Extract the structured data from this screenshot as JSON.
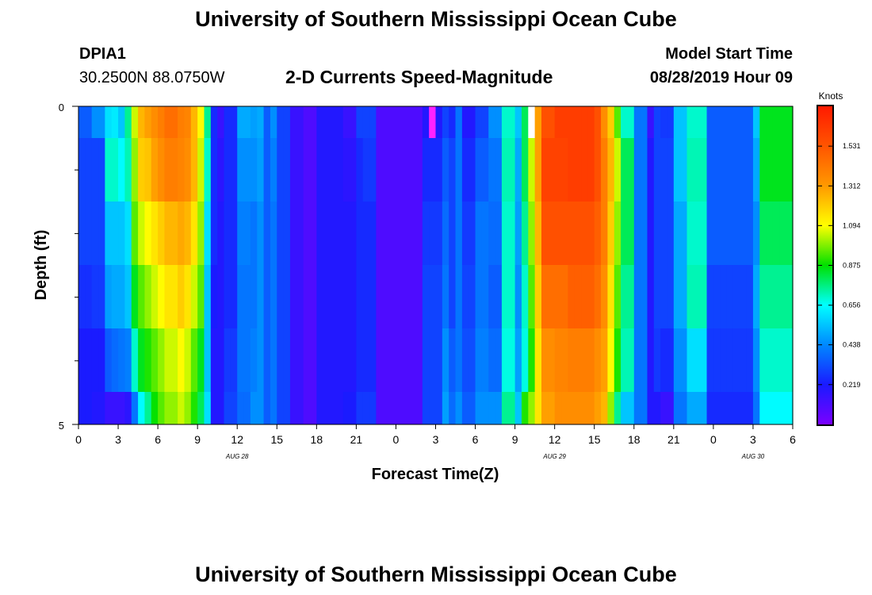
{
  "page": {
    "title": "University of Southern Mississippi Ocean Cube",
    "footer_title": "University of Southern Mississippi Ocean Cube",
    "station_id": "DPIA1",
    "station_coords": "30.2500N 88.0750W",
    "model_start_label": "Model Start Time",
    "model_start_value": "08/28/2019 Hour 09"
  },
  "chart_data": {
    "type": "heatmap",
    "title": "2-D Currents Speed-Magnitude",
    "xlabel": "Forecast Time(Z)",
    "ylabel": "Depth (ft)",
    "ylim": [
      0,
      5
    ],
    "y_tick_labels": [
      "0",
      "5"
    ],
    "x_tick_labels": [
      "0",
      "3",
      "6",
      "9",
      "12",
      "15",
      "18",
      "21",
      "0",
      "3",
      "6",
      "9",
      "12",
      "15",
      "18",
      "21",
      "0",
      "3",
      "6"
    ],
    "date_labels": [
      {
        "label": "AUG 28",
        "hour_index": 24
      },
      {
        "label": "AUG 29",
        "hour_index": 72
      },
      {
        "label": "AUG 30",
        "hour_index": 102
      }
    ],
    "hours": 108,
    "depth_rows": 5,
    "colorbar": {
      "unit_label": "Knots",
      "ticks": [
        "1.531",
        "1.312",
        "1.094",
        "0.875",
        "0.656",
        "0.438",
        "0.219"
      ],
      "min": 0.0,
      "max": 1.75,
      "colors": [
        "#7a00ff",
        "#1a1aff",
        "#0088ff",
        "#00ffff",
        "#00e000",
        "#ffff00",
        "#ff9900",
        "#ff5500",
        "#ff1a00"
      ]
    },
    "profile_hours": [
      0,
      2,
      4,
      5,
      6,
      7,
      8,
      9,
      10,
      11,
      12,
      13,
      14,
      15,
      16,
      17,
      18,
      19,
      20,
      21,
      22,
      24,
      26,
      27,
      28,
      29,
      30,
      32,
      34,
      36,
      40,
      42,
      43,
      45,
      50,
      52,
      55,
      56,
      57,
      58,
      60,
      62,
      64,
      66,
      67,
      68,
      69,
      70,
      72,
      74,
      76,
      78,
      79,
      80,
      81,
      82,
      84,
      86,
      87,
      88,
      90,
      92,
      95,
      96,
      98,
      100,
      102,
      103,
      104,
      105,
      106,
      107
    ],
    "profile_values": [
      [
        0.35,
        0.3,
        0.3,
        0.26,
        0.22,
        0.22
      ],
      [
        0.45,
        0.3,
        0.3,
        0.28,
        0.22,
        0.2
      ],
      [
        0.6,
        0.7,
        0.55,
        0.48,
        0.35,
        0.15
      ],
      [
        0.62,
        0.7,
        0.55,
        0.5,
        0.38,
        0.15
      ],
      [
        0.55,
        0.65,
        0.55,
        0.5,
        0.4,
        0.15
      ],
      [
        0.75,
        0.72,
        0.6,
        0.55,
        0.42,
        0.18
      ],
      [
        1.05,
        1.0,
        0.95,
        0.85,
        0.7,
        0.4
      ],
      [
        1.25,
        1.2,
        1.05,
        0.95,
        0.85,
        0.65
      ],
      [
        1.3,
        1.22,
        1.1,
        1.0,
        0.9,
        0.75
      ],
      [
        1.35,
        1.3,
        1.15,
        1.05,
        0.95,
        0.88
      ],
      [
        1.4,
        1.35,
        1.2,
        1.1,
        1.0,
        0.95
      ],
      [
        1.45,
        1.4,
        1.25,
        1.15,
        1.05,
        1.0
      ],
      [
        1.45,
        1.4,
        1.25,
        1.15,
        1.05,
        1.0
      ],
      [
        1.4,
        1.38,
        1.28,
        1.2,
        1.1,
        1.05
      ],
      [
        1.38,
        1.35,
        1.25,
        1.15,
        1.05,
        1.0
      ],
      [
        1.25,
        1.25,
        1.15,
        1.05,
        0.95,
        0.9
      ],
      [
        1.1,
        1.05,
        1.0,
        0.95,
        0.85,
        0.8
      ],
      [
        0.75,
        0.7,
        0.6,
        0.55,
        0.55,
        0.6
      ],
      [
        0.25,
        0.25,
        0.25,
        0.22,
        0.2,
        0.2
      ],
      [
        0.15,
        0.18,
        0.2,
        0.2,
        0.2,
        0.2
      ],
      [
        0.25,
        0.25,
        0.25,
        0.25,
        0.28,
        0.3
      ],
      [
        0.5,
        0.45,
        0.42,
        0.4,
        0.4,
        0.38
      ],
      [
        0.48,
        0.45,
        0.4,
        0.4,
        0.42,
        0.45
      ],
      [
        0.5,
        0.48,
        0.45,
        0.45,
        0.45,
        0.45
      ],
      [
        0.35,
        0.35,
        0.35,
        0.35,
        0.35,
        0.35
      ],
      [
        0.45,
        0.42,
        0.4,
        0.4,
        0.4,
        0.4
      ],
      [
        0.3,
        0.3,
        0.3,
        0.3,
        0.3,
        0.3
      ],
      [
        0.15,
        0.15,
        0.15,
        0.15,
        0.15,
        0.15
      ],
      [
        0.1,
        0.1,
        0.1,
        0.1,
        0.1,
        0.1
      ],
      [
        0.2,
        0.2,
        0.2,
        0.2,
        0.2,
        0.2
      ],
      [
        0.15,
        0.18,
        0.2,
        0.2,
        0.2,
        0.22
      ],
      [
        0.3,
        0.25,
        0.25,
        0.25,
        0.25,
        0.28
      ],
      [
        0.3,
        0.28,
        0.25,
        0.25,
        0.25,
        0.28
      ],
      [
        0.1,
        0.1,
        0.1,
        0.1,
        0.1,
        0.1
      ],
      [
        0.1,
        0.1,
        0.1,
        0.1,
        0.1,
        0.1
      ],
      [
        0.2,
        0.25,
        0.28,
        0.3,
        0.3,
        0.3
      ],
      [
        0.3,
        0.35,
        0.38,
        0.4,
        0.45,
        0.48
      ],
      [
        0.25,
        0.3,
        0.3,
        0.3,
        0.35,
        0.38
      ],
      [
        0.4,
        0.4,
        0.4,
        0.4,
        0.4,
        0.45
      ],
      [
        0.2,
        0.25,
        0.28,
        0.3,
        0.32,
        0.35
      ],
      [
        0.3,
        0.35,
        0.4,
        0.4,
        0.42,
        0.45
      ],
      [
        0.45,
        0.4,
        0.38,
        0.35,
        0.38,
        0.45
      ],
      [
        0.7,
        0.72,
        0.7,
        0.7,
        0.68,
        0.75
      ],
      [
        0.55,
        0.5,
        0.48,
        0.45,
        0.48,
        0.55
      ],
      [
        0.8,
        0.8,
        0.75,
        0.7,
        0.68,
        0.9
      ],
      [
        1.0,
        1.05,
        1.0,
        0.95,
        0.9,
        1.0
      ],
      [
        1.3,
        1.3,
        1.25,
        1.2,
        1.15,
        1.15
      ],
      [
        1.55,
        1.6,
        1.55,
        1.45,
        1.35,
        1.3
      ],
      [
        1.62,
        1.6,
        1.55,
        1.45,
        1.38,
        1.35
      ],
      [
        1.62,
        1.62,
        1.55,
        1.5,
        1.4,
        1.35
      ],
      [
        1.62,
        1.62,
        1.55,
        1.5,
        1.4,
        1.35
      ],
      [
        1.55,
        1.55,
        1.5,
        1.45,
        1.35,
        1.3
      ],
      [
        1.35,
        1.4,
        1.4,
        1.35,
        1.3,
        1.25
      ],
      [
        1.2,
        1.25,
        1.2,
        1.15,
        1.1,
        1.0
      ],
      [
        0.95,
        1.05,
        1.0,
        0.95,
        0.9,
        0.75
      ],
      [
        0.7,
        0.8,
        0.8,
        0.75,
        0.72,
        0.55
      ],
      [
        0.4,
        0.4,
        0.4,
        0.4,
        0.4,
        0.4
      ],
      [
        0.15,
        0.2,
        0.2,
        0.2,
        0.2,
        0.2
      ],
      [
        0.3,
        0.3,
        0.3,
        0.3,
        0.28,
        0.2
      ],
      [
        0.28,
        0.3,
        0.3,
        0.3,
        0.25,
        0.15
      ],
      [
        0.55,
        0.55,
        0.5,
        0.5,
        0.45,
        0.4
      ],
      [
        0.7,
        0.72,
        0.7,
        0.72,
        0.6,
        0.5
      ],
      [
        0.75,
        0.75,
        0.72,
        0.72,
        0.62,
        0.5
      ],
      [
        0.55,
        0.55,
        0.55,
        0.5,
        0.45,
        0.4
      ],
      [
        0.4,
        0.4,
        0.4,
        0.4,
        0.35,
        0.3
      ],
      [
        0.3,
        0.3,
        0.3,
        0.3,
        0.3,
        0.3
      ],
      [
        0.55,
        0.5,
        0.45,
        0.5,
        0.45,
        0.4
      ],
      [
        0.72,
        0.68,
        0.6,
        0.6,
        0.5,
        0.45
      ],
      [
        0.4,
        0.4,
        0.4,
        0.4,
        0.38,
        0.3
      ],
      [
        0.2,
        0.2,
        0.2,
        0.2,
        0.2,
        0.2
      ],
      [
        0.2,
        0.2,
        0.2,
        0.2,
        0.25,
        0.25
      ],
      [
        0.35,
        0.35,
        0.35,
        0.35,
        0.35,
        0.4
      ]
    ],
    "extra_profiles": [
      {
        "from": 95,
        "to": 102,
        "values": [
          0.35,
          0.35,
          0.35,
          0.3,
          0.28,
          0.25
        ]
      },
      {
        "from": 103,
        "to": 108,
        "values": [
          0.85,
          0.85,
          0.8,
          0.75,
          0.7,
          0.65
        ]
      }
    ],
    "special_cells": [
      {
        "hour": 53,
        "row": 0,
        "color": "#ff22ff"
      },
      {
        "hour": 68,
        "row": 0,
        "color": "#ffffff"
      }
    ]
  }
}
